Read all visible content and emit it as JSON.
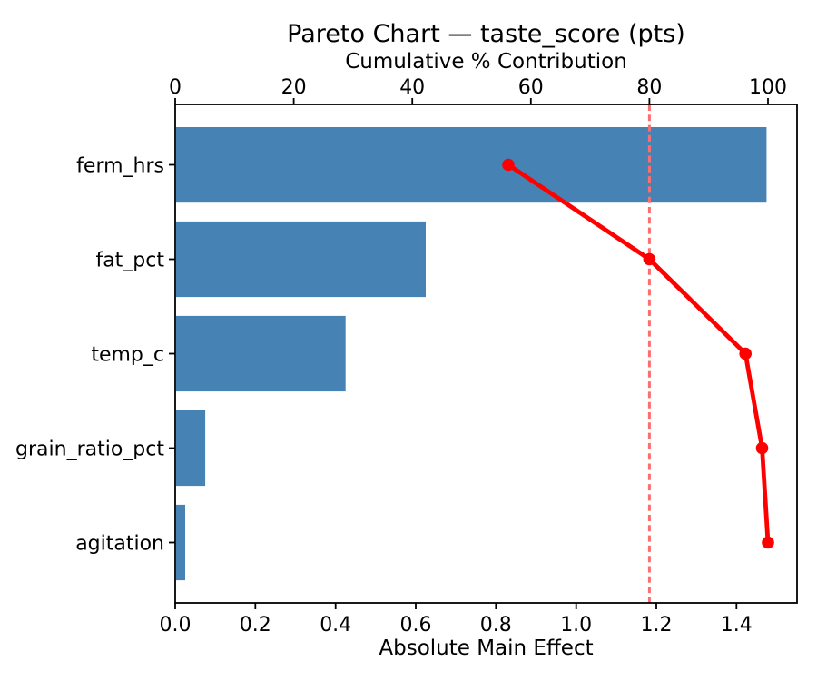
{
  "chart_data": {
    "type": "bar",
    "subtype": "pareto-horizontal",
    "title": "Pareto Chart — taste_score (pts)",
    "categories": [
      "ferm_hrs",
      "fat_pct",
      "temp_c",
      "grain_ratio_pct",
      "agitation"
    ],
    "series": [
      {
        "name": "Absolute Main Effect",
        "type": "bar",
        "values": [
          1.475,
          0.625,
          0.425,
          0.075,
          0.025
        ]
      },
      {
        "name": "Cumulative % Contribution",
        "type": "line",
        "values": [
          56.2,
          80.0,
          96.2,
          99.0,
          100.0
        ]
      }
    ],
    "bottom_axis": {
      "label": "Absolute Main Effect",
      "range": [
        0,
        1.551
      ],
      "tick_values": [
        0.0,
        0.2,
        0.4,
        0.6,
        0.8,
        1.0,
        1.2,
        1.4
      ],
      "tick_labels": [
        "0.0",
        "0.2",
        "0.4",
        "0.6",
        "0.8",
        "1.0",
        "1.2",
        "1.4"
      ]
    },
    "top_axis": {
      "label": "Cumulative % Contribution",
      "range": [
        0,
        104.9
      ],
      "tick_values": [
        0,
        20,
        40,
        60,
        80,
        100
      ],
      "tick_labels": [
        "0",
        "20",
        "40",
        "60",
        "80",
        "100"
      ]
    },
    "reference_line": {
      "value": 80,
      "axis": "top",
      "style": "dashed"
    },
    "legend": "none",
    "grid": false,
    "colors": {
      "bar": "#4682b4",
      "line": "#ff0000",
      "marker": "#ff0000",
      "reference": "#ff6e6e",
      "spine": "#000000",
      "text": "#000000",
      "background": "#ffffff"
    }
  }
}
